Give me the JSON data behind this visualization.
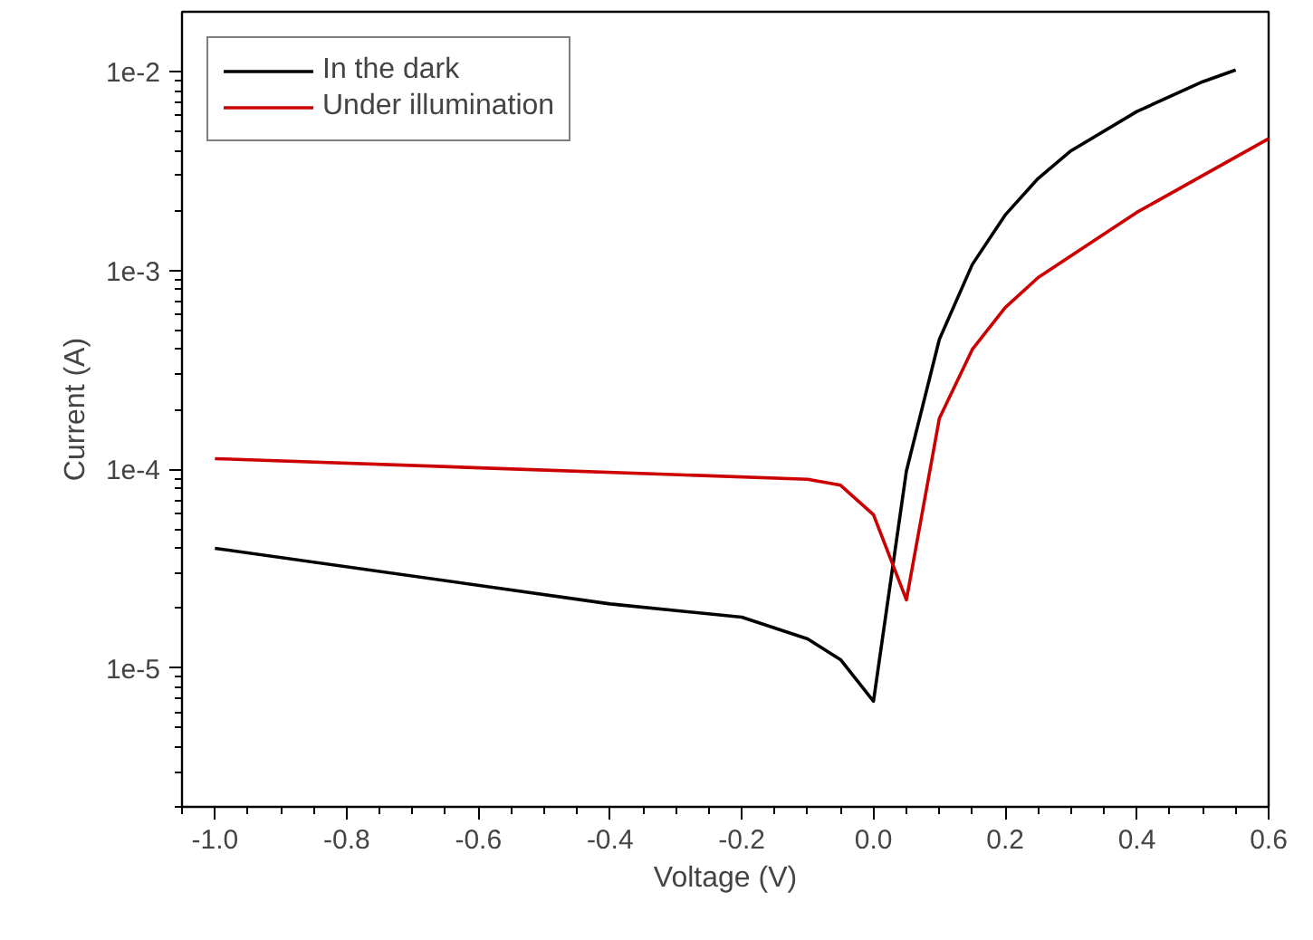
{
  "chart_data": {
    "type": "line",
    "xlabel": "Voltage (V)",
    "ylabel": "Current (A)",
    "log": "y",
    "grid": false,
    "legend": "top left",
    "line_style": "solid",
    "marker": "none",
    "xlim": [
      -1.05,
      0.6
    ],
    "xticks": [
      {
        "value": -1.0,
        "label": "-1.0"
      },
      -0.8,
      -0.6,
      -0.4,
      -0.2,
      {
        "value": 0.0,
        "label": "0.0"
      },
      0.2,
      0.4,
      0.6
    ],
    "ylim": [
      2e-06,
      0.02
    ],
    "yticks": [
      {
        "value": 0.01,
        "label": "1e-2"
      },
      {
        "value": 0.001,
        "label": "1e-3"
      },
      {
        "value": 0.0001,
        "label": "1e-4"
      },
      {
        "value": 1e-05,
        "label": "1e-5"
      }
    ],
    "series": [
      {
        "name": "In the dark",
        "color": "#000000",
        "x": [
          -1.0,
          -0.4,
          -0.2,
          -0.1,
          -0.05,
          0.0,
          0.05,
          0.1,
          0.15,
          0.2,
          0.25,
          0.3,
          0.4,
          0.5,
          0.55
        ],
        "values": [
          4e-05,
          2.1e-05,
          1.8e-05,
          1.4e-05,
          1.1e-05,
          6.8e-06,
          9.8e-05,
          0.00045,
          0.00107,
          0.0019,
          0.0029,
          0.004,
          0.0063,
          0.0089,
          0.0102
        ]
      },
      {
        "name": "Under illumination",
        "color": "#cc0000",
        "x": [
          -1.0,
          -0.1,
          -0.05,
          0.0,
          0.05,
          0.1,
          0.15,
          0.2,
          0.25,
          0.4,
          0.6
        ],
        "values": [
          0.000113,
          8.9e-05,
          8.3e-05,
          5.9e-05,
          2.2e-05,
          0.00018,
          0.0004,
          0.00065,
          0.00092,
          0.00196,
          0.0046
        ]
      }
    ]
  }
}
